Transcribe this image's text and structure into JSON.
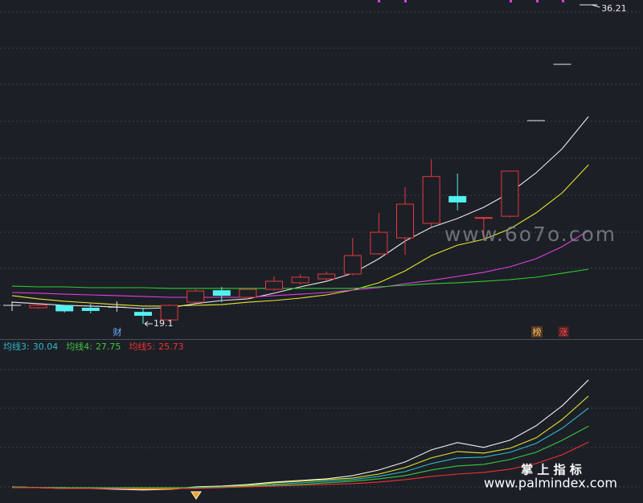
{
  "chart_data": [
    {
      "type": "candlestick",
      "categories": [
        null,
        null,
        null,
        null,
        null,
        null,
        null,
        null,
        null,
        null,
        null,
        null,
        null,
        null,
        null,
        null,
        null,
        null,
        null,
        null,
        null,
        null,
        null
      ],
      "open": [
        20.09,
        19.96,
        20.1,
        19.96,
        19.99,
        19.74,
        19.31,
        20.26,
        20.9,
        20.52,
        20.95,
        21.3,
        21.51,
        21.77,
        22.85,
        23.71,
        24.49,
        25.95,
        24.79,
        24.87,
        30.0,
        33.02,
        36.21
      ],
      "high": [
        20.3,
        20.15,
        20.1,
        20.18,
        20.3,
        19.96,
        20.15,
        20.95,
        21.08,
        21.0,
        21.64,
        21.77,
        21.9,
        23.71,
        25.05,
        26.43,
        27.93,
        27.16,
        24.8,
        27.29,
        30.0,
        33.02,
        36.21
      ],
      "low": [
        19.79,
        19.9,
        19.7,
        19.66,
        19.75,
        19.1,
        19.2,
        20.2,
        20.26,
        20.4,
        20.86,
        21.2,
        21.4,
        21.7,
        22.8,
        22.8,
        24.3,
        25.18,
        23.6,
        24.8,
        30.0,
        33.02,
        36.21
      ],
      "close": [
        20.09,
        20.1,
        19.77,
        19.79,
        19.99,
        19.53,
        20.09,
        20.86,
        20.6,
        20.95,
        21.38,
        21.6,
        21.77,
        22.76,
        24.01,
        25.52,
        27.0,
        25.61,
        24.8,
        27.29,
        30.0,
        33.02,
        36.21
      ],
      "up_color": "#e8383d",
      "down_color": "#54f0f0",
      "flat_color": "#e8e8e8",
      "series": [
        {
          "color": "#e8e8e8",
          "values": [
            20.26,
            20.18,
            20.09,
            20.05,
            20.0,
            19.92,
            19.96,
            20.18,
            20.35,
            20.44,
            20.74,
            21.08,
            21.38,
            21.81,
            22.59,
            23.54,
            24.27,
            24.75,
            25.35,
            26.13,
            27.2,
            28.5,
            30.22
          ]
        },
        {
          "color": "#e6e62e",
          "values": [
            20.61,
            20.44,
            20.31,
            20.22,
            20.13,
            20.05,
            20.05,
            20.09,
            20.13,
            20.26,
            20.35,
            20.48,
            20.65,
            20.91,
            21.3,
            21.94,
            22.76,
            23.32,
            23.63,
            24.19,
            25.05,
            26.13,
            27.63
          ]
        },
        {
          "color": "#e040e0",
          "values": [
            20.78,
            20.74,
            20.69,
            20.65,
            20.61,
            20.57,
            20.52,
            20.52,
            20.52,
            20.52,
            20.61,
            20.69,
            20.78,
            20.91,
            21.04,
            21.25,
            21.43,
            21.64,
            21.86,
            22.16,
            22.59,
            23.24,
            24.1
          ]
        },
        {
          "color": "#2ecc2e",
          "values": [
            21.12,
            21.08,
            21.08,
            21.04,
            21.04,
            21.04,
            21.0,
            21.0,
            21.0,
            21.0,
            21.0,
            21.0,
            21.0,
            21.0,
            21.08,
            21.17,
            21.25,
            21.3,
            21.38,
            21.47,
            21.6,
            21.81,
            22.03
          ]
        }
      ],
      "ylim": [
        18.28,
        36.47
      ],
      "markers": [
        "财",
        "榜",
        "涨"
      ]
    },
    {
      "type": "line",
      "categories": [
        null,
        null,
        null,
        null,
        null,
        null,
        null,
        null,
        null,
        null,
        null,
        null,
        null,
        null,
        null,
        null,
        null,
        null,
        null,
        null,
        null,
        null,
        null
      ],
      "series": [
        {
          "color": "#f0f0f0",
          "values": [
            20.04,
            19.94,
            19.84,
            19.84,
            19.74,
            19.64,
            19.74,
            20.04,
            20.14,
            20.35,
            20.65,
            20.86,
            21.06,
            21.47,
            22.19,
            23.21,
            24.74,
            25.66,
            25.05,
            25.96,
            27.8,
            30.35,
            33.62
          ]
        },
        {
          "color": "#e6e62e",
          "values": [
            20.04,
            19.94,
            19.94,
            19.84,
            19.84,
            19.74,
            19.74,
            19.94,
            20.04,
            20.24,
            20.55,
            20.76,
            20.96,
            21.16,
            21.67,
            22.49,
            23.72,
            24.53,
            24.33,
            24.94,
            26.27,
            28.61,
            31.57
          ]
        },
        {
          "name": "均线3:",
          "color": "#2fb8c8",
          "values": [
            20.04,
            19.94,
            19.94,
            19.84,
            19.84,
            19.84,
            19.84,
            19.94,
            20.04,
            20.14,
            20.35,
            20.55,
            20.76,
            20.96,
            21.37,
            21.98,
            23.0,
            23.72,
            23.82,
            24.43,
            25.55,
            27.49,
            30.04
          ]
        },
        {
          "name": "均线4:",
          "color": "#3cc83c",
          "values": [
            20.04,
            19.94,
            19.94,
            19.94,
            19.94,
            19.94,
            19.94,
            19.94,
            20.04,
            20.14,
            20.24,
            20.35,
            20.55,
            20.76,
            21.06,
            21.47,
            22.19,
            22.7,
            22.9,
            23.51,
            24.43,
            25.96,
            27.75
          ]
        },
        {
          "name": "均线5:",
          "color": "#f03030",
          "values": [
            19.94,
            19.94,
            19.84,
            19.84,
            19.84,
            19.84,
            19.84,
            19.84,
            19.94,
            20.04,
            20.14,
            20.24,
            20.35,
            20.45,
            20.65,
            20.96,
            21.37,
            21.67,
            21.88,
            22.29,
            23.0,
            24.12,
            25.73
          ]
        }
      ],
      "ylim": [
        18.4,
        38.5
      ]
    }
  ],
  "watermarks": [
    "www.6o7o.com",
    "掌 上 指 标",
    "www.palmindex.com"
  ]
}
